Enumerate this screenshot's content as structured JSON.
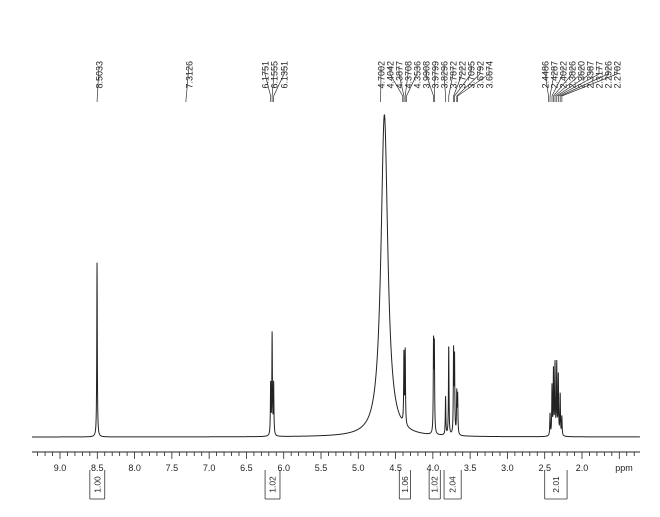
{
  "chart_data": {
    "type": "line",
    "xlabel": "ppm",
    "xlim": [
      9.6,
      1.0
    ],
    "reversed_x": true,
    "ticks": [
      9.0,
      8.5,
      8.0,
      7.5,
      7.0,
      6.5,
      6.0,
      5.5,
      5.0,
      4.5,
      4.0,
      3.5,
      3.0,
      2.5,
      2.0
    ],
    "tick_labels": [
      "9.0",
      "8.5",
      "8.0",
      "7.5",
      "7.0",
      "6.5",
      "6.0",
      "5.5",
      "5.0",
      "4.5",
      "4.0",
      "3.5",
      "3.0",
      "2.5",
      "2.0"
    ],
    "peak_labels": [
      {
        "group": "a",
        "labels": [
          "8.5033"
        ]
      },
      {
        "group": "b",
        "labels": [
          "7.3126"
        ]
      },
      {
        "group": "c",
        "labels": [
          "6.1751",
          "6.1555",
          "6.1351"
        ]
      },
      {
        "group": "d",
        "labels": [
          "4.7002",
          "4.4042",
          "4.3877",
          "4.3708",
          "4.3536",
          "3.9908",
          "3.9799",
          "3.8296",
          "3.7872",
          "3.7222",
          "3.7095",
          "3.6792",
          "3.6674"
        ]
      },
      {
        "group": "e",
        "labels": [
          "2.4486",
          "2.4287",
          "2.4022",
          "2.3826",
          "2.3620",
          "2.3387",
          "2.3177",
          "2.2926",
          "2.2702"
        ]
      }
    ],
    "peaks": [
      {
        "shift": 8.5033,
        "height": 0.64
      },
      {
        "shift": 6.1751,
        "height": 0.19
      },
      {
        "shift": 6.1555,
        "height": 0.37
      },
      {
        "shift": 6.1351,
        "height": 0.19
      },
      {
        "shift": 4.65,
        "height": 1.18,
        "width": 0.055
      },
      {
        "shift": 4.3877,
        "height": 0.26
      },
      {
        "shift": 4.3708,
        "height": 0.27
      },
      {
        "shift": 3.9908,
        "height": 0.33
      },
      {
        "shift": 3.9799,
        "height": 0.31
      },
      {
        "shift": 3.8296,
        "height": 0.14
      },
      {
        "shift": 3.7872,
        "height": 0.33
      },
      {
        "shift": 3.7222,
        "height": 0.3
      },
      {
        "shift": 3.7095,
        "height": 0.28
      },
      {
        "shift": 3.6792,
        "height": 0.15
      },
      {
        "shift": 3.6674,
        "height": 0.14
      },
      {
        "shift": 2.4287,
        "height": 0.08
      },
      {
        "shift": 2.4022,
        "height": 0.18
      },
      {
        "shift": 2.3826,
        "height": 0.24
      },
      {
        "shift": 2.362,
        "height": 0.26
      },
      {
        "shift": 2.3387,
        "height": 0.26
      },
      {
        "shift": 2.3177,
        "height": 0.22
      },
      {
        "shift": 2.2926,
        "height": 0.15
      },
      {
        "shift": 2.2702,
        "height": 0.07
      }
    ],
    "integrals": [
      {
        "from": 8.6,
        "to": 8.4,
        "value": "1.00"
      },
      {
        "from": 6.25,
        "to": 6.05,
        "value": "1.02"
      },
      {
        "from": 4.45,
        "to": 4.3,
        "value": "1.06"
      },
      {
        "from": 4.05,
        "to": 3.9,
        "value": "1.02"
      },
      {
        "from": 3.85,
        "to": 3.62,
        "value": "2.04"
      },
      {
        "from": 2.5,
        "to": 2.2,
        "value": "2.01"
      }
    ]
  }
}
